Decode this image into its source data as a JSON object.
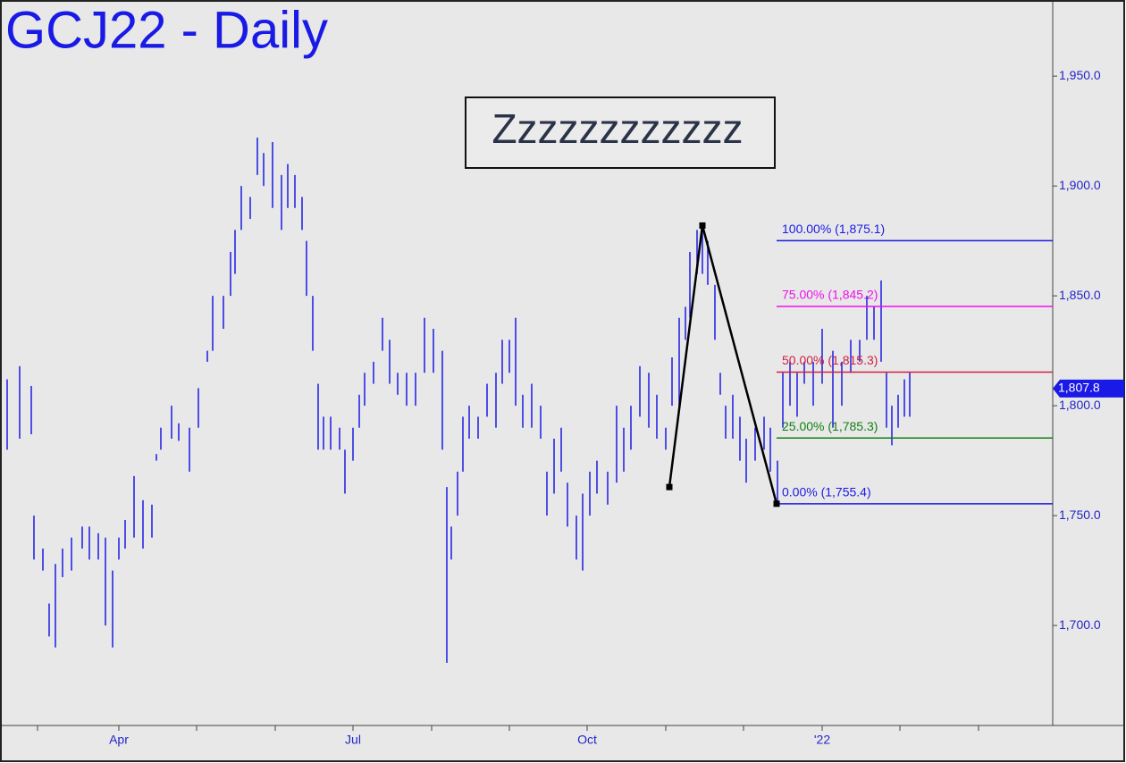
{
  "chart_data": {
    "type": "ohlc",
    "title": "GCJ22 - Daily",
    "annotation": "Zzzzzzzzzzzz",
    "xlim": [
      0,
      1178
    ],
    "ylim": [
      1654.5,
      1983
    ],
    "xticks": [
      {
        "value": 42,
        "label": null
      },
      {
        "value": 133,
        "label": "Apr"
      },
      {
        "value": 220,
        "label": null
      },
      {
        "value": 308,
        "label": null
      },
      {
        "value": 395,
        "label": "Jul"
      },
      {
        "value": 483,
        "label": null
      },
      {
        "value": 570,
        "label": null
      },
      {
        "value": 657,
        "label": "Oct"
      },
      {
        "value": 745,
        "label": null
      },
      {
        "value": 832,
        "label": null
      },
      {
        "value": 920,
        "label": "'22"
      },
      {
        "value": 1007,
        "label": null
      },
      {
        "value": 1095,
        "label": null
      }
    ],
    "yticks": [
      {
        "value": 1700,
        "label": "1,700.0"
      },
      {
        "value": 1750,
        "label": "1,750.0"
      },
      {
        "value": 1800,
        "label": "1,800.0"
      },
      {
        "value": 1850,
        "label": "1,850.0"
      },
      {
        "value": 1900,
        "label": "1,900.0"
      },
      {
        "value": 1950,
        "label": "1,950.0"
      }
    ],
    "bar_color": "#1a1ae6",
    "x": [
      8,
      22,
      35,
      38,
      48,
      55,
      62,
      70,
      80,
      92,
      100,
      110,
      118,
      126,
      133,
      140,
      150,
      160,
      170,
      175,
      180,
      192,
      200,
      212,
      222,
      232,
      238,
      250,
      258,
      263,
      270,
      280,
      288,
      295,
      305,
      315,
      322,
      330,
      338,
      343,
      350,
      356,
      362,
      370,
      380,
      386,
      395,
      402,
      408,
      418,
      428,
      436,
      445,
      455,
      465,
      475,
      485,
      495,
      500,
      505,
      512,
      518,
      525,
      535,
      545,
      555,
      562,
      570,
      577,
      585,
      595,
      605,
      612,
      620,
      628,
      635,
      645,
      652,
      660,
      668,
      680,
      690,
      698,
      706,
      716,
      726,
      735,
      745,
      752,
      760,
      767,
      772,
      780,
      786,
      792,
      800,
      806,
      812,
      820,
      828,
      835,
      845,
      855,
      862,
      870,
      876,
      884,
      892,
      900,
      910,
      920,
      932,
      942,
      952,
      962,
      970,
      978,
      986,
      992,
      998,
      1005,
      1012,
      1018
    ],
    "high": [
      1812,
      1818,
      1809,
      1750,
      1735,
      1710,
      1728,
      1735,
      1740,
      1745,
      1745,
      1742,
      1740,
      1725,
      1740,
      1748,
      1768,
      1757,
      1755,
      1778,
      1790,
      1800,
      1792,
      1790,
      1808,
      1825,
      1850,
      1850,
      1870,
      1880,
      1900,
      1895,
      1922,
      1915,
      1920,
      1905,
      1910,
      1905,
      1895,
      1875,
      1850,
      1810,
      1795,
      1795,
      1790,
      1780,
      1790,
      1805,
      1815,
      1820,
      1840,
      1830,
      1815,
      1815,
      1815,
      1840,
      1835,
      1825,
      1763,
      1745,
      1770,
      1795,
      1800,
      1795,
      1810,
      1815,
      1830,
      1830,
      1840,
      1805,
      1810,
      1800,
      1770,
      1785,
      1790,
      1765,
      1750,
      1760,
      1770,
      1775,
      1770,
      1800,
      1790,
      1800,
      1818,
      1815,
      1805,
      1790,
      1822,
      1840,
      1845,
      1870,
      1880,
      1882,
      1875,
      1855,
      1815,
      1800,
      1805,
      1795,
      1785,
      1790,
      1795,
      1790,
      1775,
      1815,
      1820,
      1815,
      1820,
      1820,
      1835,
      1825,
      1820,
      1830,
      1830,
      1850,
      1845,
      1857,
      1815,
      1800,
      1805,
      1812,
      1815
    ],
    "low": [
      1780,
      1785,
      1787,
      1730,
      1725,
      1695,
      1690,
      1722,
      1725,
      1735,
      1730,
      1730,
      1700,
      1690,
      1730,
      1735,
      1740,
      1735,
      1740,
      1775,
      1780,
      1785,
      1784,
      1770,
      1790,
      1820,
      1825,
      1835,
      1850,
      1860,
      1880,
      1885,
      1905,
      1900,
      1890,
      1880,
      1890,
      1890,
      1880,
      1850,
      1825,
      1780,
      1780,
      1780,
      1780,
      1760,
      1775,
      1790,
      1800,
      1810,
      1825,
      1810,
      1805,
      1800,
      1800,
      1815,
      1815,
      1780,
      1683,
      1730,
      1750,
      1770,
      1785,
      1785,
      1795,
      1790,
      1810,
      1815,
      1800,
      1790,
      1790,
      1785,
      1750,
      1760,
      1770,
      1745,
      1730,
      1725,
      1750,
      1760,
      1755,
      1765,
      1770,
      1780,
      1795,
      1790,
      1785,
      1780,
      1800,
      1800,
      1830,
      1840,
      1860,
      1860,
      1855,
      1830,
      1805,
      1785,
      1785,
      1775,
      1765,
      1775,
      1780,
      1770,
      1755,
      1790,
      1800,
      1795,
      1810,
      1800,
      1810,
      1790,
      1800,
      1815,
      1820,
      1830,
      1830,
      1820,
      1790,
      1782,
      1790,
      1795,
      1795
    ],
    "pattern": {
      "color": "#000000",
      "x": [
        749,
        786,
        869
      ],
      "y": [
        1763,
        1882,
        1755.4
      ]
    },
    "fib": {
      "x_start": 869,
      "levels": [
        {
          "value": 1875.1,
          "label": "100.00% (1,875.1)",
          "color": "#1a1ae6"
        },
        {
          "value": 1845.2,
          "label": "75.00% (1,845.2)",
          "color": "#ee10ee"
        },
        {
          "value": 1815.3,
          "label": "50.00% (1,815.3)",
          "color": "#d02040"
        },
        {
          "value": 1785.3,
          "label": "25.00% (1,785.3)",
          "color": "#108010"
        },
        {
          "value": 1755.4,
          "label": "0.00% (1,755.4)",
          "color": "#1a1ae6"
        }
      ]
    },
    "last_price": {
      "value": 1807.8,
      "label": "1,807.8"
    }
  }
}
